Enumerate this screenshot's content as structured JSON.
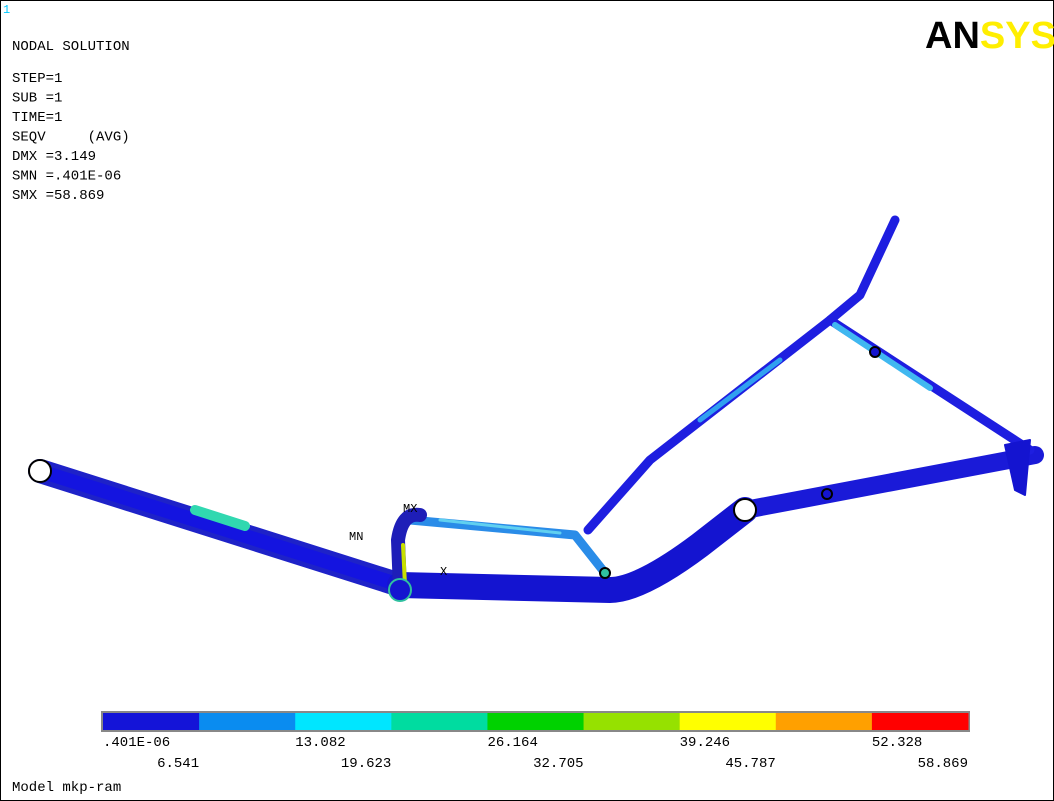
{
  "window_number": "1",
  "header": {
    "title": "NODAL SOLUTION",
    "info_lines": [
      "STEP=1",
      "SUB =1",
      "TIME=1",
      "SEQV     (AVG)",
      "DMX =3.149",
      "SMN =.401E-06",
      "SMX =58.869"
    ]
  },
  "logo": {
    "part1": "AN",
    "part2": "SYS"
  },
  "model_labels": {
    "max": "MX",
    "min": "MN",
    "axis": "X"
  },
  "legend": {
    "colors": [
      "#1414d8",
      "#0a8cf0",
      "#00e6ff",
      "#00dca0",
      "#00d200",
      "#96e100",
      "#ffff00",
      "#ffa000",
      "#ff0000"
    ],
    "labels": [
      ".401E-06",
      "6.541",
      "13.082",
      "19.623",
      "26.164",
      "32.705",
      "39.246",
      "45.787",
      "52.328",
      "58.869"
    ]
  },
  "footer": "Model mkp-ram"
}
